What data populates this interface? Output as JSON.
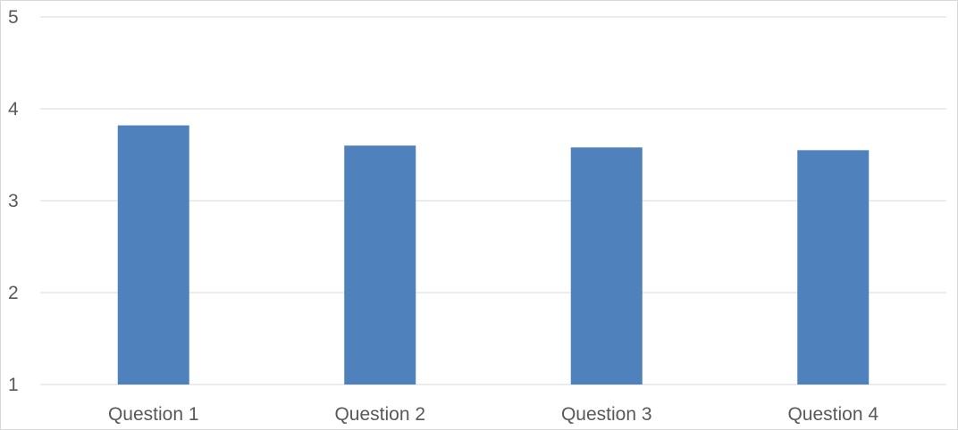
{
  "chart_data": {
    "type": "bar",
    "title": "",
    "xlabel": "",
    "ylabel": "",
    "categories": [
      "Question 1",
      "Question 2",
      "Question 3",
      "Question 4"
    ],
    "values": [
      3.82,
      3.6,
      3.58,
      3.55
    ],
    "ylim": [
      1,
      5
    ],
    "yticks": [
      "1",
      "2",
      "3",
      "4",
      "5"
    ],
    "grid": true,
    "legend": "none",
    "bar_color": "#4f81bd",
    "grid_color": "#d9d9d9",
    "label_color": "#595959"
  }
}
